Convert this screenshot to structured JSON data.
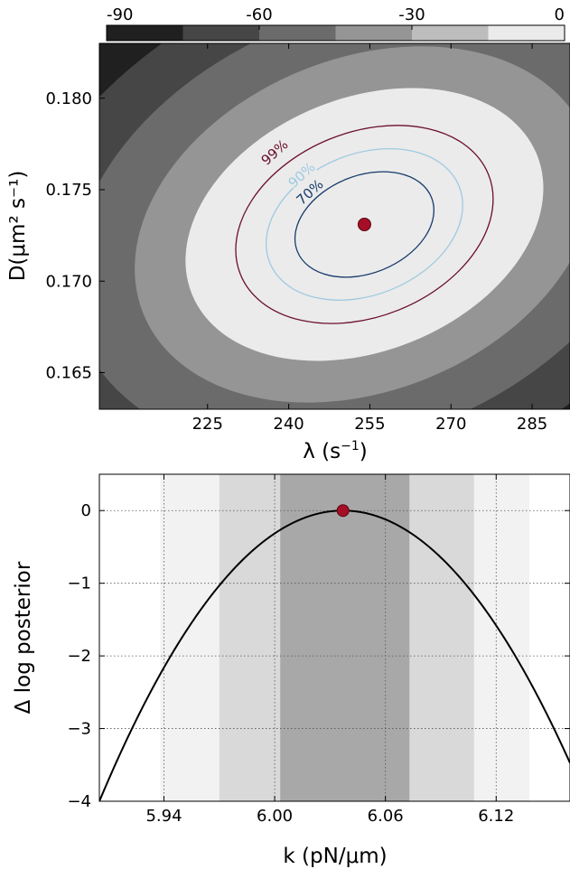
{
  "chart_data": [
    {
      "type": "contour",
      "xlabel_main": "λ (s",
      "xlabel_sup": "−1",
      "xlabel_close": ")",
      "ylabel": "D(μm² s⁻¹)",
      "xlim": [
        205,
        292
      ],
      "ylim": [
        0.163,
        0.183
      ],
      "xticks": [
        "225",
        "240",
        "255",
        "270",
        "285"
      ],
      "xtick_values": [
        225,
        240,
        255,
        270,
        285
      ],
      "yticks": [
        "0.165",
        "0.170",
        "0.175",
        "0.180"
      ],
      "ytick_values": [
        0.165,
        0.17,
        0.175,
        0.18
      ],
      "colorbar": {
        "ticks": [
          "-90",
          "-60",
          "-30",
          "0"
        ],
        "tick_values": [
          -90,
          -60,
          -30,
          0
        ],
        "range": [
          -90,
          0
        ],
        "colors": [
          "#202020",
          "#464646",
          "#6b6b6b",
          "#959595",
          "#bdbdbd",
          "#ebebeb"
        ]
      },
      "contours": [
        {
          "label": "99%",
          "color": "#6b0f2a"
        },
        {
          "label": "90%",
          "color": "#9ecae1"
        },
        {
          "label": "70%",
          "color": "#163a6b"
        }
      ],
      "peak": {
        "x": 254,
        "y": 0.1731,
        "color": "#a50f26"
      }
    },
    {
      "type": "line",
      "xlabel": "k (pN/μm)",
      "ylabel": "Δ log posterior",
      "xlim": [
        5.905,
        6.16
      ],
      "ylim": [
        -4,
        0.5
      ],
      "xticks": [
        "5.94",
        "6.00",
        "6.06",
        "6.12"
      ],
      "xtick_values": [
        5.94,
        6.0,
        6.06,
        6.12
      ],
      "yticks": [
        "0",
        "−1",
        "−2",
        "−3",
        "−4"
      ],
      "ytick_values": [
        0,
        -1,
        -2,
        -3,
        -4
      ],
      "peak_x": 6.037,
      "peak_y": 0,
      "curve_at_xmin": -4,
      "bands": [
        {
          "x0": 5.938,
          "x1": 6.138,
          "color": "#f2f2f2"
        },
        {
          "x0": 5.97,
          "x1": 6.108,
          "color": "#d9d9d9"
        },
        {
          "x0": 6.003,
          "x1": 6.073,
          "color": "#a8a8a8"
        }
      ],
      "peak_color": "#a50f26"
    }
  ]
}
